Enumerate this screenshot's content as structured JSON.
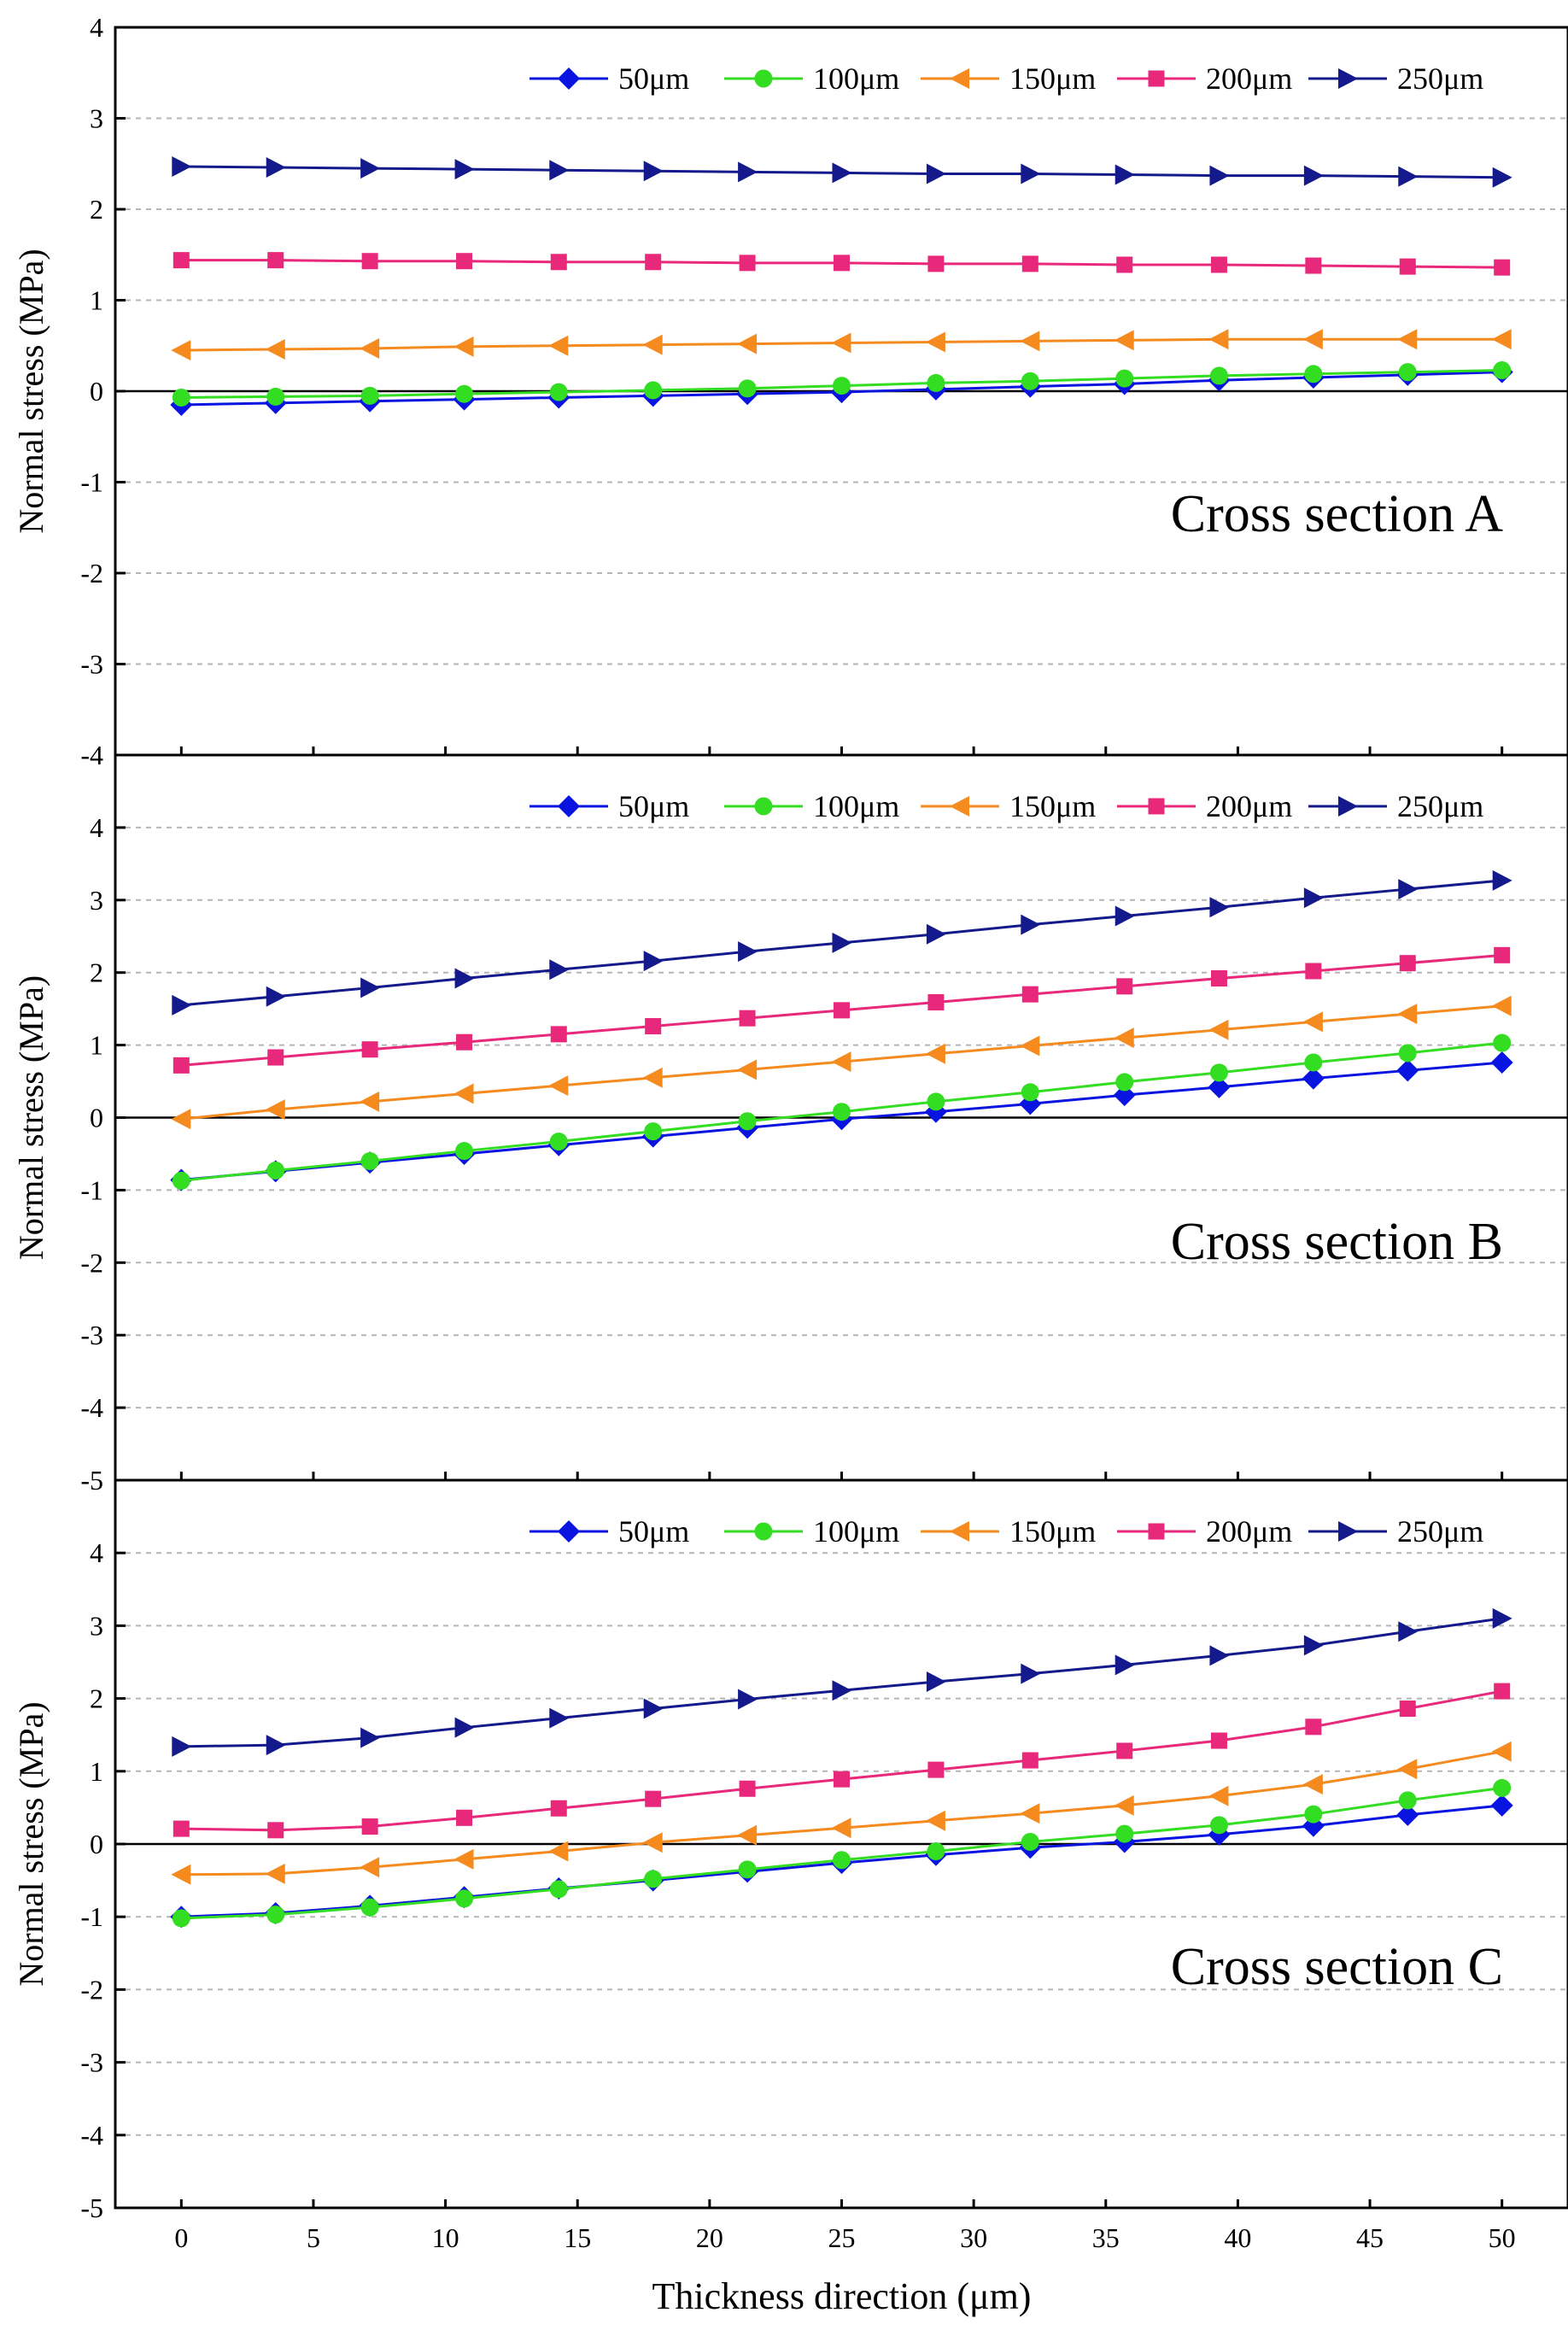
{
  "chart_data": [
    {
      "type": "line",
      "annotation": "Cross section A",
      "ylabel": "Normal stress (MPa)",
      "xlabel": "",
      "xlim": [
        -2.5,
        52.5
      ],
      "ylim": [
        -4,
        4
      ],
      "y_ticks": [
        "-4",
        "-3",
        "-2",
        "-1",
        "0",
        "1",
        "2",
        "3",
        "4"
      ],
      "y_tick_values": [
        -4,
        -3,
        -2,
        -1,
        0,
        1,
        2,
        3,
        4
      ],
      "grid": "horizontal dashed",
      "zero_line": true,
      "legend_position": "top",
      "x": [
        0,
        3.57,
        7.14,
        10.71,
        14.29,
        17.86,
        21.43,
        25,
        28.57,
        32.14,
        35.71,
        39.29,
        42.86,
        46.43,
        50
      ],
      "series": [
        {
          "name": "50μm",
          "color": "#0a14e0",
          "marker": "diamond",
          "values": [
            -0.15,
            -0.13,
            -0.11,
            -0.09,
            -0.07,
            -0.05,
            -0.03,
            -0.01,
            0.02,
            0.05,
            0.08,
            0.12,
            0.15,
            0.18,
            0.21
          ]
        },
        {
          "name": "100μm",
          "color": "#33dd22",
          "marker": "circle",
          "values": [
            -0.07,
            -0.06,
            -0.05,
            -0.03,
            -0.01,
            0.01,
            0.03,
            0.06,
            0.09,
            0.11,
            0.14,
            0.17,
            0.19,
            0.21,
            0.23
          ]
        },
        {
          "name": "150μm",
          "color": "#f58a1f",
          "marker": "triangle-left",
          "values": [
            0.45,
            0.46,
            0.47,
            0.49,
            0.5,
            0.51,
            0.52,
            0.53,
            0.54,
            0.55,
            0.56,
            0.57,
            0.57,
            0.57,
            0.57
          ]
        },
        {
          "name": "200μm",
          "color": "#e8287a",
          "marker": "square",
          "values": [
            1.44,
            1.44,
            1.43,
            1.43,
            1.42,
            1.42,
            1.41,
            1.41,
            1.4,
            1.4,
            1.39,
            1.39,
            1.38,
            1.37,
            1.36
          ]
        },
        {
          "name": "250μm",
          "color": "#141a8c",
          "marker": "triangle-right",
          "values": [
            2.47,
            2.46,
            2.45,
            2.44,
            2.43,
            2.42,
            2.41,
            2.4,
            2.39,
            2.39,
            2.38,
            2.37,
            2.37,
            2.36,
            2.35
          ]
        }
      ]
    },
    {
      "type": "line",
      "annotation": "Cross section B",
      "ylabel": "Normal stress (MPa)",
      "xlabel": "",
      "xlim": [
        -2.5,
        52.5
      ],
      "ylim": [
        -5,
        5
      ],
      "y_ticks": [
        "-5",
        "-4",
        "-3",
        "-2",
        "-1",
        "0",
        "1",
        "2",
        "3",
        "4"
      ],
      "y_tick_values": [
        -5,
        -4,
        -3,
        -2,
        -1,
        0,
        1,
        2,
        3,
        4
      ],
      "grid": "horizontal dashed",
      "zero_line": true,
      "legend_position": "top",
      "x": [
        0,
        3.57,
        7.14,
        10.71,
        14.29,
        17.86,
        21.43,
        25,
        28.57,
        32.14,
        35.71,
        39.29,
        42.86,
        46.43,
        50
      ],
      "series": [
        {
          "name": "50μm",
          "color": "#0a14e0",
          "marker": "diamond",
          "values": [
            -0.86,
            -0.74,
            -0.62,
            -0.5,
            -0.38,
            -0.26,
            -0.14,
            -0.02,
            0.08,
            0.19,
            0.31,
            0.42,
            0.54,
            0.65,
            0.76
          ]
        },
        {
          "name": "100μm",
          "color": "#33dd22",
          "marker": "circle",
          "values": [
            -0.87,
            -0.73,
            -0.6,
            -0.46,
            -0.33,
            -0.19,
            -0.05,
            0.08,
            0.22,
            0.35,
            0.49,
            0.62,
            0.76,
            0.89,
            1.03
          ]
        },
        {
          "name": "150μm",
          "color": "#f58a1f",
          "marker": "triangle-left",
          "values": [
            -0.02,
            0.11,
            0.22,
            0.33,
            0.44,
            0.55,
            0.66,
            0.77,
            0.88,
            0.99,
            1.1,
            1.21,
            1.32,
            1.43,
            1.54
          ]
        },
        {
          "name": "200μm",
          "color": "#e8287a",
          "marker": "square",
          "values": [
            0.72,
            0.83,
            0.94,
            1.04,
            1.15,
            1.26,
            1.37,
            1.48,
            1.59,
            1.7,
            1.81,
            1.92,
            2.02,
            2.13,
            2.24
          ]
        },
        {
          "name": "250μm",
          "color": "#141a8c",
          "marker": "triangle-right",
          "values": [
            1.55,
            1.67,
            1.79,
            1.92,
            2.04,
            2.16,
            2.29,
            2.41,
            2.53,
            2.66,
            2.78,
            2.9,
            3.03,
            3.15,
            3.27
          ]
        }
      ]
    },
    {
      "type": "line",
      "annotation": "Cross section C",
      "ylabel": "Normal stress (MPa)",
      "xlabel": "Thickness direction (μm)",
      "xlim": [
        -2.5,
        52.5
      ],
      "ylim": [
        -5,
        5
      ],
      "y_ticks": [
        "-5",
        "-4",
        "-3",
        "-2",
        "-1",
        "0",
        "1",
        "2",
        "3",
        "4"
      ],
      "y_tick_values": [
        -5,
        -4,
        -3,
        -2,
        -1,
        0,
        1,
        2,
        3,
        4
      ],
      "x_ticks": [
        "0",
        "5",
        "10",
        "15",
        "20",
        "25",
        "30",
        "35",
        "40",
        "45",
        "50"
      ],
      "x_tick_values": [
        0,
        5,
        10,
        15,
        20,
        25,
        30,
        35,
        40,
        45,
        50
      ],
      "grid": "horizontal dashed",
      "zero_line": true,
      "legend_position": "top",
      "x": [
        0,
        3.57,
        7.14,
        10.71,
        14.29,
        17.86,
        21.43,
        25,
        28.57,
        32.14,
        35.71,
        39.29,
        42.86,
        46.43,
        50
      ],
      "series": [
        {
          "name": "50μm",
          "color": "#0a14e0",
          "marker": "diamond",
          "values": [
            -1.0,
            -0.95,
            -0.85,
            -0.73,
            -0.61,
            -0.5,
            -0.38,
            -0.26,
            -0.15,
            -0.05,
            0.03,
            0.13,
            0.25,
            0.4,
            0.53
          ]
        },
        {
          "name": "100μm",
          "color": "#33dd22",
          "marker": "circle",
          "values": [
            -1.02,
            -0.97,
            -0.87,
            -0.75,
            -0.62,
            -0.48,
            -0.35,
            -0.22,
            -0.1,
            0.03,
            0.14,
            0.26,
            0.41,
            0.6,
            0.77
          ]
        },
        {
          "name": "150μm",
          "color": "#f58a1f",
          "marker": "triangle-left",
          "values": [
            -0.42,
            -0.41,
            -0.32,
            -0.21,
            -0.1,
            0.02,
            0.12,
            0.22,
            0.32,
            0.42,
            0.53,
            0.66,
            0.82,
            1.03,
            1.27
          ]
        },
        {
          "name": "200μm",
          "color": "#e8287a",
          "marker": "square",
          "values": [
            0.21,
            0.19,
            0.24,
            0.36,
            0.49,
            0.62,
            0.76,
            0.89,
            1.02,
            1.15,
            1.28,
            1.42,
            1.61,
            1.86,
            2.1
          ]
        },
        {
          "name": "250μm",
          "color": "#141a8c",
          "marker": "triangle-right",
          "values": [
            1.34,
            1.36,
            1.46,
            1.6,
            1.73,
            1.86,
            1.99,
            2.11,
            2.23,
            2.34,
            2.46,
            2.59,
            2.73,
            2.92,
            3.1
          ]
        }
      ]
    }
  ]
}
